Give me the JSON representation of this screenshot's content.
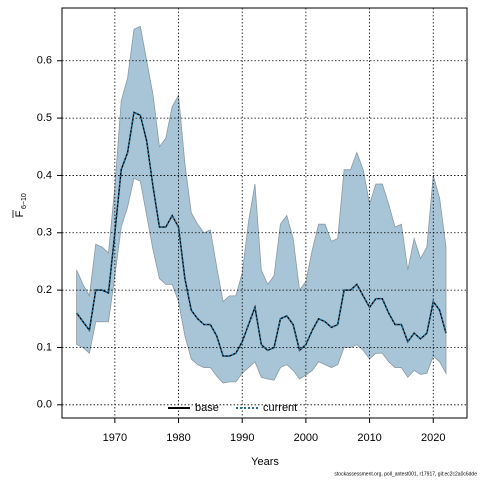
{
  "chart_data": {
    "type": "line",
    "xlabel": "Years",
    "ylabel": "F",
    "ylabel_sub": "6−10",
    "footer": "stockassessment.org, poll_antest001, r17917, git:ec2c2a0c6dde",
    "x": [
      1964,
      1965,
      1966,
      1967,
      1968,
      1969,
      1970,
      1971,
      1972,
      1973,
      1974,
      1975,
      1976,
      1977,
      1978,
      1979,
      1980,
      1981,
      1982,
      1983,
      1984,
      1985,
      1986,
      1987,
      1988,
      1989,
      1990,
      1991,
      1992,
      1993,
      1994,
      1995,
      1996,
      1997,
      1998,
      1999,
      2000,
      2001,
      2002,
      2003,
      2004,
      2005,
      2006,
      2007,
      2008,
      2009,
      2010,
      2011,
      2012,
      2013,
      2014,
      2015,
      2016,
      2017,
      2018,
      2019,
      2020,
      2021,
      2022
    ],
    "band": {
      "color": "#a7c5d6",
      "upper": [
        0.235,
        0.21,
        0.19,
        0.28,
        0.275,
        0.265,
        0.38,
        0.53,
        0.57,
        0.655,
        0.66,
        0.6,
        0.54,
        0.45,
        0.465,
        0.52,
        0.54,
        0.42,
        0.335,
        0.315,
        0.3,
        0.305,
        0.24,
        0.18,
        0.19,
        0.19,
        0.23,
        0.32,
        0.385,
        0.235,
        0.21,
        0.225,
        0.315,
        0.33,
        0.29,
        0.2,
        0.215,
        0.27,
        0.315,
        0.315,
        0.285,
        0.29,
        0.41,
        0.41,
        0.44,
        0.41,
        0.35,
        0.385,
        0.385,
        0.35,
        0.31,
        0.315,
        0.235,
        0.29,
        0.255,
        0.275,
        0.4,
        0.36,
        0.275
      ],
      "lower": [
        0.105,
        0.1,
        0.09,
        0.145,
        0.145,
        0.145,
        0.225,
        0.31,
        0.345,
        0.395,
        0.39,
        0.33,
        0.27,
        0.22,
        0.21,
        0.21,
        0.18,
        0.12,
        0.08,
        0.07,
        0.065,
        0.065,
        0.05,
        0.038,
        0.04,
        0.04,
        0.055,
        0.065,
        0.075,
        0.048,
        0.045,
        0.043,
        0.065,
        0.07,
        0.06,
        0.045,
        0.052,
        0.06,
        0.075,
        0.07,
        0.065,
        0.07,
        0.1,
        0.1,
        0.105,
        0.095,
        0.08,
        0.09,
        0.09,
        0.075,
        0.065,
        0.065,
        0.048,
        0.06,
        0.053,
        0.055,
        0.085,
        0.075,
        0.055
      ]
    },
    "series": [
      {
        "name": "base",
        "color": "#000000",
        "dash": false,
        "values": [
          0.16,
          0.145,
          0.13,
          0.2,
          0.2,
          0.195,
          0.3,
          0.41,
          0.44,
          0.51,
          0.505,
          0.46,
          0.38,
          0.31,
          0.31,
          0.33,
          0.31,
          0.22,
          0.165,
          0.15,
          0.14,
          0.14,
          0.12,
          0.085,
          0.085,
          0.09,
          0.11,
          0.14,
          0.17,
          0.105,
          0.095,
          0.1,
          0.15,
          0.155,
          0.14,
          0.095,
          0.105,
          0.13,
          0.15,
          0.145,
          0.135,
          0.14,
          0.2,
          0.2,
          0.21,
          0.19,
          0.17,
          0.185,
          0.185,
          0.16,
          0.14,
          0.14,
          0.11,
          0.125,
          0.115,
          0.125,
          0.18,
          0.165,
          0.125
        ]
      },
      {
        "name": "current",
        "color": "#1f6f99",
        "dash": true,
        "values": [
          0.16,
          0.145,
          0.13,
          0.2,
          0.2,
          0.195,
          0.3,
          0.41,
          0.44,
          0.51,
          0.505,
          0.46,
          0.38,
          0.31,
          0.31,
          0.33,
          0.31,
          0.22,
          0.165,
          0.15,
          0.14,
          0.14,
          0.12,
          0.085,
          0.085,
          0.09,
          0.11,
          0.14,
          0.17,
          0.105,
          0.095,
          0.1,
          0.15,
          0.155,
          0.14,
          0.095,
          0.105,
          0.13,
          0.15,
          0.145,
          0.135,
          0.14,
          0.2,
          0.2,
          0.21,
          0.19,
          0.17,
          0.185,
          0.185,
          0.16,
          0.14,
          0.14,
          0.11,
          0.125,
          0.115,
          0.125,
          0.18,
          0.165,
          0.125
        ]
      }
    ],
    "xlim": [
      1961.7,
      2025.3
    ],
    "ylim": [
      -0.023,
      0.692
    ],
    "xticks": [
      1970,
      1980,
      1990,
      2000,
      2010,
      2020
    ],
    "yticks": [
      {
        "value": 0,
        "label": "0.0"
      },
      0.1,
      0.2,
      0.3,
      0.4,
      0.5,
      0.6
    ],
    "grid": true,
    "legend": "bottom"
  }
}
